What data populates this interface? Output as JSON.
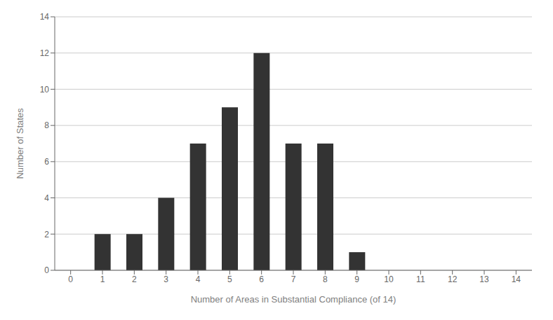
{
  "chart_data": {
    "type": "bar",
    "categories": [
      0,
      1,
      2,
      3,
      4,
      5,
      6,
      7,
      8,
      9,
      10,
      11,
      12,
      13,
      14
    ],
    "values": [
      0,
      2,
      2,
      4,
      7,
      9,
      12,
      7,
      7,
      1,
      0,
      0,
      0,
      0,
      0
    ],
    "color": "#333333",
    "xlabel": "Number of Areas in Substantial Compliance (of 14)",
    "ylabel": "Number of States",
    "ylim": [
      0,
      14
    ],
    "yticks": [
      0,
      2,
      4,
      6,
      8,
      10,
      12,
      14
    ],
    "grid": true
  }
}
